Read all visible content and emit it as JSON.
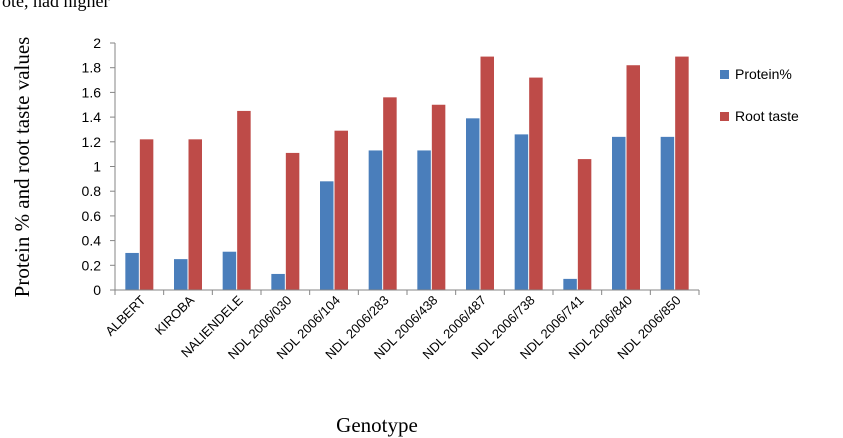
{
  "caption_fragment": "ote, had higher",
  "chart_data": {
    "type": "bar",
    "title": "",
    "xlabel": "Genotype",
    "ylabel": "Protein % and root taste values",
    "ylim": [
      0,
      2
    ],
    "yticks": [
      0,
      0.2,
      0.4,
      0.6,
      0.8,
      1,
      1.2,
      1.4,
      1.6,
      1.8,
      2
    ],
    "ytick_labels": [
      "0",
      "0.2",
      "0.4",
      "0.6",
      "0.8",
      "1",
      "1.2",
      "1.4",
      "1.6",
      "1.8",
      "2"
    ],
    "grid": false,
    "legend_position": "right",
    "categories": [
      "ALBERT",
      "KIROBA",
      "NALIENDELE",
      "NDL 2006/030",
      "NDL 2006/104",
      "NDL 2006/283",
      "NDL 2006/438",
      "NDL 2006/487",
      "NDL 2006/738",
      "NDL 2006/741",
      "NDL 2006/840",
      "NDL 2006/850"
    ],
    "series": [
      {
        "name": "Protein%",
        "color": "#4a7ebb",
        "values": [
          0.3,
          0.25,
          0.31,
          0.13,
          0.88,
          1.13,
          1.13,
          1.39,
          1.26,
          0.09,
          1.24,
          1.24
        ]
      },
      {
        "name": "Root taste",
        "color": "#be4b48",
        "values": [
          1.22,
          1.22,
          1.45,
          1.11,
          1.29,
          1.56,
          1.5,
          1.89,
          1.72,
          1.06,
          1.82,
          1.89
        ]
      }
    ]
  }
}
